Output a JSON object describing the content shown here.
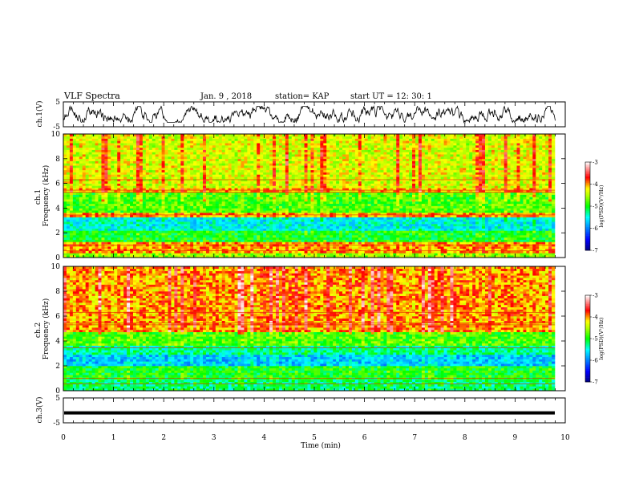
{
  "header": {
    "title": "VLF Spectra",
    "date": "Jan. 9 , 2018",
    "station": "station= KAP",
    "start": "start UT = 12: 30: 1"
  },
  "chart_data": [
    {
      "type": "line",
      "panel": "ch1-waveform",
      "ylabel": "ch.1(V)",
      "ylim": [
        -5,
        5
      ],
      "yticks": [
        "5",
        "-5"
      ],
      "xlim": [
        0,
        9.8
      ],
      "note": "noisy waveform oscillating roughly between -3 and 3 V"
    },
    {
      "type": "heatmap",
      "panel": "ch1-spectrogram",
      "ylabel": "ch.1 Frequency (kHz)",
      "ylim": [
        0,
        10
      ],
      "yticks": [
        "0",
        "2",
        "4",
        "6",
        "8",
        "10"
      ],
      "xlim": [
        0,
        9.8
      ],
      "bands_kHz_logPSD": [
        {
          "from": 0.0,
          "to": 0.4,
          "value": -4.6
        },
        {
          "from": 0.4,
          "to": 1.2,
          "value": -4.0
        },
        {
          "from": 1.2,
          "to": 2.2,
          "value": -5.0
        },
        {
          "from": 2.2,
          "to": 3.3,
          "value": -5.5
        },
        {
          "from": 3.3,
          "to": 3.7,
          "value": -4.0
        },
        {
          "from": 3.7,
          "to": 5.2,
          "value": -4.8
        },
        {
          "from": 5.2,
          "to": 5.6,
          "value": -4.1
        },
        {
          "from": 5.6,
          "to": 10.0,
          "value": -4.35
        }
      ],
      "colorbar": {
        "label": "log(PSD)(V²/Hz)",
        "range": [
          -7,
          -3
        ],
        "ticks": [
          "-3",
          "-4",
          "-5",
          "-6",
          "-7"
        ]
      }
    },
    {
      "type": "heatmap",
      "panel": "ch2-spectrogram",
      "ylabel": "ch.2 Frequency (kHz)",
      "ylim": [
        0,
        10
      ],
      "yticks": [
        "0",
        "2",
        "4",
        "6",
        "8",
        "10"
      ],
      "xlim": [
        0,
        9.8
      ],
      "bands_kHz_logPSD": [
        {
          "from": 0.0,
          "to": 1.0,
          "value": -5.2
        },
        {
          "from": 1.0,
          "to": 2.0,
          "value": -5.0
        },
        {
          "from": 2.0,
          "to": 3.0,
          "value": -5.7
        },
        {
          "from": 3.0,
          "to": 3.6,
          "value": -5.3
        },
        {
          "from": 3.6,
          "to": 4.8,
          "value": -4.8
        },
        {
          "from": 4.8,
          "to": 10.0,
          "value": -4.0
        }
      ],
      "colorbar": {
        "label": "log(PSD)(V²/Hz)",
        "range": [
          -7,
          -3
        ],
        "ticks": [
          "-3",
          "-4",
          "-5",
          "-6",
          "-7"
        ]
      }
    },
    {
      "type": "line",
      "panel": "ch3-waveform",
      "ylabel": "ch.3(V)",
      "ylim": [
        -5,
        5
      ],
      "yticks": [
        "5",
        "-5"
      ],
      "xlim": [
        0,
        9.8
      ],
      "note": "flat thick line near -1 V"
    }
  ],
  "xaxis": {
    "label": "Time (min)",
    "range": [
      0,
      10
    ],
    "ticks": [
      "0",
      "1",
      "2",
      "3",
      "4",
      "5",
      "6",
      "7",
      "8",
      "9",
      "10"
    ]
  },
  "colors": {
    "colormap": [
      "#000080",
      "#0000ff",
      "#00ffff",
      "#00ff00",
      "#ffff00",
      "#ff0000",
      "#ffffff"
    ]
  }
}
